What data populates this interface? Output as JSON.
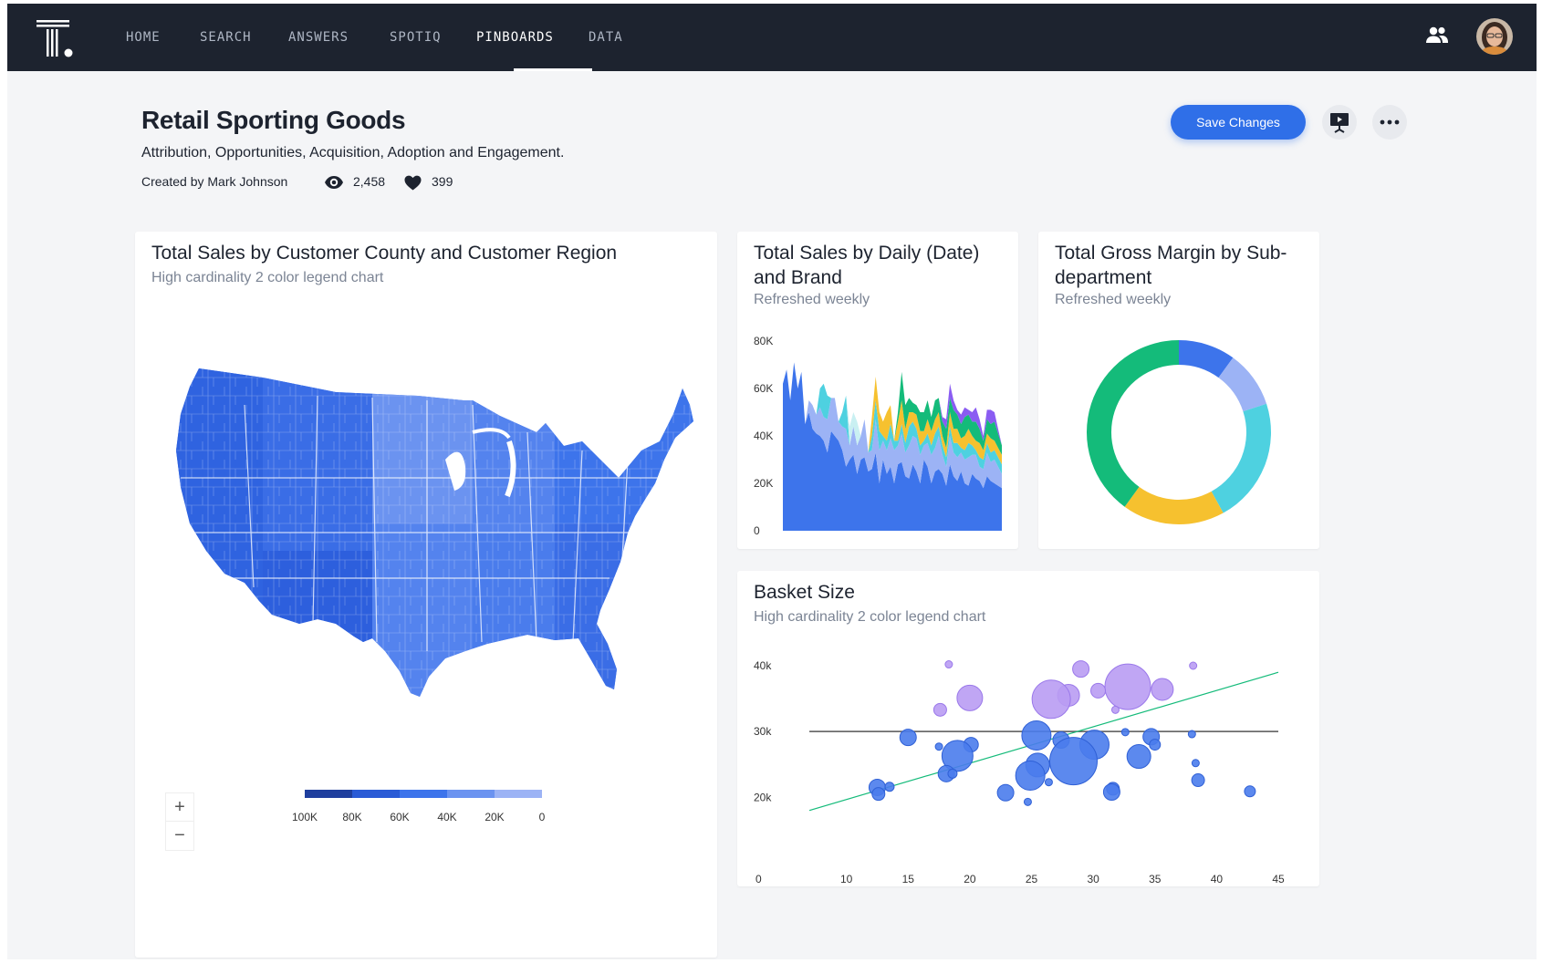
{
  "nav": {
    "items": [
      {
        "label": "HOME"
      },
      {
        "label": "SEARCH"
      },
      {
        "label": "ANSWERS"
      },
      {
        "label": "SPOTIQ"
      },
      {
        "label": "PINBOARDS"
      },
      {
        "label": "DATA"
      }
    ],
    "active": "PINBOARDS"
  },
  "header": {
    "title": "Retail Sporting Goods",
    "description": "Attribution, Opportunities, Acquisition, Adoption and Engagement.",
    "created_by": "Created by Mark Johnson",
    "views": "2,458",
    "likes": "399",
    "save_label": "Save Changes"
  },
  "colors": {
    "accent": "#2f6fe8",
    "nav_bg": "#1d232f",
    "blue": "#3d74eb",
    "light_blue": "#9cb3f5",
    "cyan": "#4ed1e0",
    "yellow": "#f6c12f",
    "green": "#14bb7a",
    "purple": "#8a5cf2",
    "bubble_purple": "#b99cf3"
  },
  "cards": {
    "map": {
      "title": "Total Sales by Customer County and Customer Region",
      "subtitle": "High cardinality 2 color legend chart",
      "zoom_in": "+",
      "zoom_out": "−"
    },
    "area": {
      "title": "Total Sales by Daily (Date) and Brand",
      "subtitle": "Refreshed weekly"
    },
    "donut": {
      "title": "Total Gross Margin by Sub-department",
      "subtitle": "Refreshed weekly"
    },
    "scatter": {
      "title": "Basket Size",
      "subtitle": "High cardinality 2 color legend chart"
    }
  },
  "chart_data": [
    {
      "type": "heatmap",
      "title": "Total Sales by Customer County and Customer Region",
      "legend": {
        "labels": [
          "100K",
          "80K",
          "60K",
          "40K",
          "20K",
          "0"
        ],
        "colors": [
          "#1f3f9e",
          "#2a5bd6",
          "#3d74eb",
          "#6b93f0",
          "#9cb3f5",
          "#c3d1f9"
        ]
      }
    },
    {
      "type": "area",
      "title": "Total Sales by Daily (Date) and Brand",
      "stacked": true,
      "y_ticks": [
        "0",
        "20K",
        "40K",
        "60K",
        "80K"
      ],
      "ylim": [
        0,
        80000
      ],
      "x": [
        0,
        1,
        2,
        3,
        4,
        5,
        6,
        7,
        8,
        9,
        10,
        11,
        12,
        13,
        14,
        15,
        16,
        17,
        18,
        19,
        20,
        21,
        22,
        23,
        24,
        25,
        26,
        27,
        28,
        29,
        30,
        31,
        32,
        33,
        34,
        35,
        36,
        37,
        38,
        39,
        40,
        41,
        42,
        43,
        44,
        45,
        46,
        47,
        48,
        49,
        50,
        51,
        52,
        53,
        54,
        55,
        56,
        57,
        58,
        59
      ],
      "series": [
        {
          "color": "#3d74eb",
          "values": [
            62000,
            68000,
            55000,
            71000,
            60000,
            67000,
            45000,
            50000,
            43000,
            41000,
            40000,
            38000,
            33000,
            42000,
            40000,
            38000,
            34000,
            27000,
            30000,
            32000,
            24000,
            30000,
            31000,
            25000,
            26000,
            33000,
            20000,
            30000,
            24000,
            27000,
            20000,
            28000,
            29000,
            23000,
            22000,
            28000,
            25000,
            20000,
            30000,
            27000,
            20000,
            25000,
            26000,
            24000,
            19000,
            28000,
            23000,
            21000,
            25000,
            20000,
            19000,
            24000,
            22000,
            21000,
            18000,
            23000,
            21000,
            20000,
            19000,
            18000
          ]
        },
        {
          "color": "#9cb3f5",
          "values": [
            0,
            0,
            0,
            0,
            0,
            0,
            0,
            5000,
            10000,
            8000,
            12000,
            10000,
            14000,
            14000,
            16000,
            8000,
            10000,
            16000,
            6000,
            12000,
            12000,
            10000,
            16000,
            8000,
            8000,
            14000,
            14000,
            8000,
            10000,
            12000,
            14000,
            8000,
            12000,
            10000,
            14000,
            12000,
            14000,
            12000,
            6000,
            10000,
            12000,
            10000,
            14000,
            8000,
            8000,
            12000,
            10000,
            10000,
            8000,
            10000,
            12000,
            8000,
            10000,
            6000,
            8000,
            10000,
            8000,
            10000,
            8000,
            6000
          ]
        },
        {
          "color": "#4ed1e0",
          "values": [
            0,
            0,
            0,
            0,
            0,
            0,
            0,
            0,
            0,
            0,
            8000,
            14000,
            10000,
            0,
            0,
            0,
            6000,
            14000,
            0,
            0,
            0,
            0,
            0,
            0,
            6000,
            8000,
            8000,
            2000,
            4000,
            6000,
            4000,
            2000,
            4000,
            4000,
            8000,
            6000,
            4000,
            4000,
            2000,
            4000,
            4000,
            6000,
            4000,
            4000,
            4000,
            4000,
            4000,
            6000,
            2000,
            4000,
            6000,
            4000,
            2000,
            4000,
            4000,
            4000,
            4000,
            4000,
            4000,
            4000
          ]
        },
        {
          "color": "#c9f0f2",
          "values": [
            0,
            0,
            0,
            0,
            0,
            0,
            0,
            0,
            0,
            0,
            0,
            0,
            0,
            0,
            0,
            0,
            0,
            0,
            8000,
            6000,
            10000,
            0,
            0,
            0,
            0,
            0,
            0,
            0,
            0,
            0,
            0,
            0,
            0,
            0,
            0,
            0,
            0,
            0,
            0,
            0,
            0,
            0,
            0,
            0,
            0,
            0,
            0,
            0,
            0,
            0,
            0,
            0,
            0,
            0,
            0,
            0,
            0,
            0,
            0,
            0
          ]
        },
        {
          "color": "#f6c12f",
          "values": [
            0,
            0,
            0,
            0,
            0,
            0,
            0,
            0,
            0,
            0,
            0,
            0,
            0,
            0,
            0,
            0,
            0,
            0,
            0,
            0,
            0,
            0,
            0,
            0,
            8000,
            10000,
            8000,
            6000,
            12000,
            8000,
            0,
            8000,
            10000,
            6000,
            6000,
            4000,
            6000,
            6000,
            4000,
            6000,
            6000,
            6000,
            6000,
            4000,
            4000,
            6000,
            6000,
            6000,
            4000,
            6000,
            6000,
            4000,
            4000,
            6000,
            4000,
            4000,
            6000,
            4000,
            4000,
            4000
          ]
        },
        {
          "color": "#14bb7a",
          "values": [
            0,
            0,
            0,
            0,
            0,
            0,
            0,
            0,
            0,
            0,
            0,
            0,
            0,
            0,
            0,
            0,
            0,
            0,
            0,
            0,
            0,
            0,
            0,
            0,
            0,
            0,
            0,
            0,
            0,
            0,
            0,
            4000,
            12000,
            10000,
            6000,
            4000,
            4000,
            8000,
            8000,
            8000,
            6000,
            8000,
            6000,
            6000,
            8000,
            6000,
            8000,
            6000,
            6000,
            8000,
            6000,
            6000,
            8000,
            6000,
            4000,
            6000,
            6000,
            8000,
            6000,
            4000
          ]
        },
        {
          "color": "#8a5cf2",
          "values": [
            0,
            0,
            0,
            0,
            0,
            0,
            0,
            0,
            0,
            0,
            0,
            0,
            0,
            0,
            0,
            0,
            0,
            0,
            0,
            0,
            0,
            0,
            0,
            0,
            0,
            0,
            0,
            0,
            0,
            0,
            0,
            0,
            0,
            0,
            0,
            0,
            0,
            0,
            0,
            0,
            0,
            0,
            0,
            2000,
            4000,
            6000,
            4000,
            2000,
            4000,
            4000,
            2000,
            4000,
            6000,
            4000,
            2000,
            4000,
            6000,
            4000,
            2000,
            0
          ]
        }
      ]
    },
    {
      "type": "pie",
      "title": "Total Gross Margin by Sub-department",
      "donut": true,
      "slices": [
        {
          "color": "#3d74eb",
          "value": 10
        },
        {
          "color": "#9cb3f5",
          "value": 10
        },
        {
          "color": "#4ed1e0",
          "value": 22
        },
        {
          "color": "#f6c12f",
          "value": 18
        },
        {
          "color": "#14bb7a",
          "value": 40
        }
      ]
    },
    {
      "type": "scatter",
      "title": "Basket Size",
      "x_ticks": [
        "0",
        "10",
        "15",
        "20",
        "25",
        "30",
        "35",
        "40",
        "45"
      ],
      "y_ticks": [
        "20k",
        "30k",
        "40k"
      ],
      "xlim": [
        5,
        45
      ],
      "ylim": [
        12,
        40
      ],
      "reference_line": 30,
      "trend_line": [
        [
          7,
          18
        ],
        [
          45,
          39
        ]
      ],
      "points": [
        {
          "x": 18.3,
          "y": 40.2,
          "r": 4,
          "c": "purple"
        },
        {
          "x": 38.1,
          "y": 40,
          "r": 4,
          "c": "purple"
        },
        {
          "x": 29.0,
          "y": 39.5,
          "r": 9,
          "c": "purple"
        },
        {
          "x": 32.8,
          "y": 36.8,
          "r": 25,
          "c": "purple"
        },
        {
          "x": 30.4,
          "y": 36.2,
          "r": 8,
          "c": "purple"
        },
        {
          "x": 35.6,
          "y": 36.4,
          "r": 12,
          "c": "purple"
        },
        {
          "x": 28.0,
          "y": 35.5,
          "r": 12,
          "c": "purple"
        },
        {
          "x": 26.6,
          "y": 34.9,
          "r": 21,
          "c": "purple"
        },
        {
          "x": 20.0,
          "y": 35.1,
          "r": 14,
          "c": "purple"
        },
        {
          "x": 17.6,
          "y": 33.3,
          "r": 7,
          "c": "purple"
        },
        {
          "x": 31.8,
          "y": 33.3,
          "r": 4,
          "c": "purple"
        },
        {
          "x": 15.0,
          "y": 29.1,
          "r": 9,
          "c": "blue"
        },
        {
          "x": 17.5,
          "y": 27.7,
          "r": 4,
          "c": "blue"
        },
        {
          "x": 20.1,
          "y": 28.0,
          "r": 8,
          "c": "blue"
        },
        {
          "x": 25.4,
          "y": 29.4,
          "r": 16,
          "c": "blue"
        },
        {
          "x": 27.4,
          "y": 28.7,
          "r": 9,
          "c": "blue"
        },
        {
          "x": 32.6,
          "y": 29.9,
          "r": 4,
          "c": "blue"
        },
        {
          "x": 34.7,
          "y": 29.2,
          "r": 9,
          "c": "blue"
        },
        {
          "x": 38.0,
          "y": 29.6,
          "r": 4,
          "c": "blue"
        },
        {
          "x": 30.1,
          "y": 28.0,
          "r": 16,
          "c": "blue"
        },
        {
          "x": 35.0,
          "y": 28.0,
          "r": 6,
          "c": "blue"
        },
        {
          "x": 19.0,
          "y": 26.3,
          "r": 17,
          "c": "blue"
        },
        {
          "x": 33.7,
          "y": 26.2,
          "r": 13,
          "c": "blue"
        },
        {
          "x": 38.3,
          "y": 25.2,
          "r": 4,
          "c": "blue"
        },
        {
          "x": 28.4,
          "y": 25.5,
          "r": 26,
          "c": "blue"
        },
        {
          "x": 25.5,
          "y": 24.9,
          "r": 13,
          "c": "blue"
        },
        {
          "x": 18.1,
          "y": 23.6,
          "r": 9,
          "c": "blue"
        },
        {
          "x": 18.6,
          "y": 23.6,
          "r": 5,
          "c": "blue"
        },
        {
          "x": 24.9,
          "y": 23.3,
          "r": 16,
          "c": "blue"
        },
        {
          "x": 26.4,
          "y": 22.3,
          "r": 4,
          "c": "blue"
        },
        {
          "x": 38.5,
          "y": 22.6,
          "r": 7,
          "c": "blue"
        },
        {
          "x": 12.5,
          "y": 21.5,
          "r": 9,
          "c": "blue"
        },
        {
          "x": 13.5,
          "y": 21.6,
          "r": 5,
          "c": "blue"
        },
        {
          "x": 31.6,
          "y": 21.3,
          "r": 7,
          "c": "blue"
        },
        {
          "x": 31.5,
          "y": 20.8,
          "r": 9,
          "c": "blue"
        },
        {
          "x": 12.6,
          "y": 20.5,
          "r": 7,
          "c": "blue"
        },
        {
          "x": 22.9,
          "y": 20.7,
          "r": 9,
          "c": "blue"
        },
        {
          "x": 42.7,
          "y": 20.9,
          "r": 6,
          "c": "blue"
        },
        {
          "x": 24.7,
          "y": 19.3,
          "r": 4,
          "c": "blue"
        }
      ]
    }
  ]
}
